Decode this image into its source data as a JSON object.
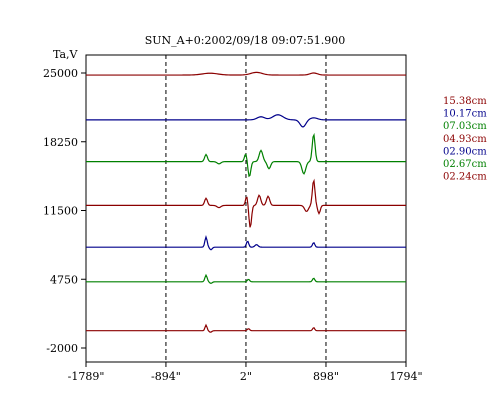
{
  "chart_data": {
    "type": "line",
    "title": "SUN_A+0:2002/09/18 09:07:51.900",
    "ylabel": "Ta,V",
    "xlabel": "",
    "x_ticks": [
      "-1789\"",
      "-894\"",
      "2\"",
      "898\"",
      "1794\""
    ],
    "x_tick_values": [
      -1789,
      -894,
      2,
      898,
      1794
    ],
    "y_ticks": [
      "25000",
      "18250",
      "11500",
      "4750",
      "-2000"
    ],
    "y_tick_values": [
      25000,
      18250,
      11500,
      4750,
      -2000
    ],
    "xlim": [
      -1789,
      1794
    ],
    "ylim": [
      -2000,
      25000
    ],
    "dashed_verticals": [
      -894,
      2,
      898
    ],
    "grid": false,
    "legend_position": "right",
    "series": [
      {
        "name": "15.38cm",
        "color": "#8b0000",
        "baseline": 24800,
        "features": [
          {
            "x": -400,
            "amp": 180,
            "w": 120
          },
          {
            "x": 120,
            "amp": 260,
            "w": 90
          },
          {
            "x": 760,
            "amp": 200,
            "w": 60
          }
        ]
      },
      {
        "name": "10.17cm",
        "color": "#00008b",
        "baseline": 20400,
        "features": [
          {
            "x": 170,
            "amp": 300,
            "w": 60
          },
          {
            "x": 360,
            "amp": 500,
            "w": 80
          },
          {
            "x": 640,
            "amp": -700,
            "w": 45
          },
          {
            "x": 760,
            "amp": 200,
            "w": 60
          }
        ]
      },
      {
        "name": "07.03cm",
        "color": "#008000",
        "baseline": 16300,
        "features": [
          {
            "x": -445,
            "amp": 700,
            "w": 22
          },
          {
            "x": -300,
            "amp": -220,
            "w": 30
          },
          {
            "x": 0,
            "amp": 800,
            "w": 20
          },
          {
            "x": 40,
            "amp": -1500,
            "w": 22
          },
          {
            "x": 170,
            "amp": 1100,
            "w": 28
          },
          {
            "x": 260,
            "amp": -700,
            "w": 26
          },
          {
            "x": 650,
            "amp": -1200,
            "w": 30
          },
          {
            "x": 760,
            "amp": 2700,
            "w": 22
          }
        ]
      },
      {
        "name": "04.93cm",
        "color": "#8b0000",
        "baseline": 12000,
        "features": [
          {
            "x": -445,
            "amp": 700,
            "w": 22
          },
          {
            "x": -300,
            "amp": -220,
            "w": 30
          },
          {
            "x": 10,
            "amp": 900,
            "w": 18
          },
          {
            "x": 50,
            "amp": -2200,
            "w": 20
          },
          {
            "x": 150,
            "amp": 1000,
            "w": 25
          },
          {
            "x": 250,
            "amp": 900,
            "w": 25
          },
          {
            "x": 680,
            "amp": -600,
            "w": 30
          },
          {
            "x": 760,
            "amp": 2500,
            "w": 20
          },
          {
            "x": 820,
            "amp": -800,
            "w": 20
          }
        ]
      },
      {
        "name": "02.90cm",
        "color": "#00008b",
        "baseline": 7900,
        "features": [
          {
            "x": -445,
            "amp": 1000,
            "w": 18
          },
          {
            "x": -390,
            "amp": -250,
            "w": 20
          },
          {
            "x": 20,
            "amp": 600,
            "w": 18
          },
          {
            "x": 120,
            "amp": 250,
            "w": 25
          },
          {
            "x": 760,
            "amp": 450,
            "w": 18
          }
        ]
      },
      {
        "name": "02.67cm",
        "color": "#008000",
        "baseline": 4500,
        "features": [
          {
            "x": -445,
            "amp": 650,
            "w": 18
          },
          {
            "x": -390,
            "amp": -150,
            "w": 20
          },
          {
            "x": 30,
            "amp": 250,
            "w": 18
          },
          {
            "x": 760,
            "amp": 350,
            "w": 18
          }
        ]
      },
      {
        "name": "02.24cm",
        "color": "#8b0000",
        "baseline": -300,
        "features": [
          {
            "x": -445,
            "amp": 550,
            "w": 16
          },
          {
            "x": -395,
            "amp": -150,
            "w": 20
          },
          {
            "x": 30,
            "amp": 200,
            "w": 18
          },
          {
            "x": 760,
            "amp": 300,
            "w": 16
          }
        ]
      }
    ]
  }
}
